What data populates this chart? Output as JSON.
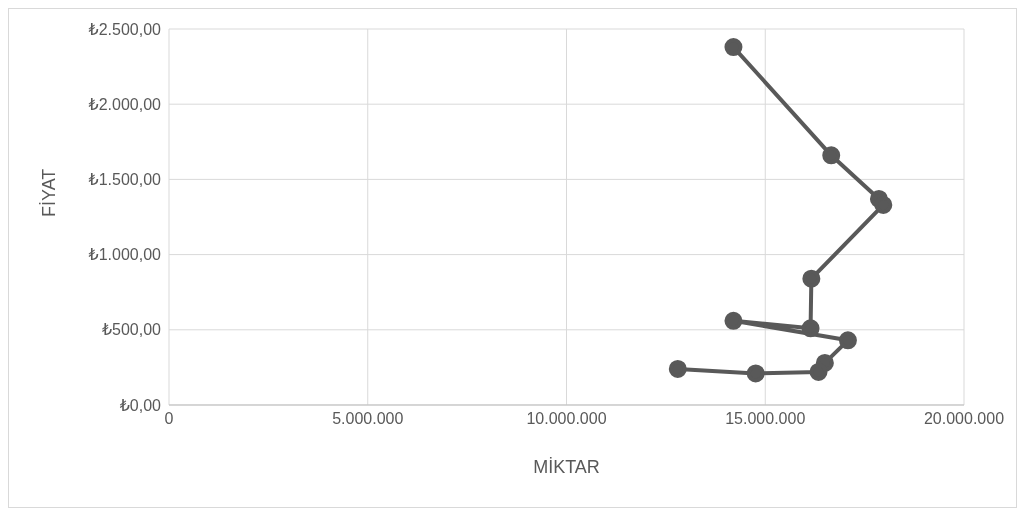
{
  "chart_data": {
    "type": "line",
    "xlabel": "MİKTAR",
    "ylabel": "FİYAT",
    "series": [
      {
        "color": "#595959",
        "x": [
          14200000,
          16660000,
          17860000,
          17970000,
          16160000,
          16140000,
          14200000,
          17080000,
          16500000,
          16340000,
          14760000,
          12800000
        ],
        "values": [
          2380,
          1660,
          1370,
          1330,
          840,
          510,
          560,
          430,
          280,
          220,
          210,
          240
        ]
      }
    ],
    "xlim": [
      0,
      20000000
    ],
    "xticks": [
      0,
      {
        "value": 5000000,
        "label": "5.000.000"
      },
      {
        "value": 10000000,
        "label": "10.000.000"
      },
      {
        "value": 15000000,
        "label": "15.000.000"
      },
      {
        "value": 20000000,
        "label": "20.000.000"
      }
    ],
    "ylim": [
      0,
      2500
    ],
    "yticks": [
      {
        "value": 0,
        "label": "₺0,00"
      },
      {
        "value": 500,
        "label": "₺500,00"
      },
      {
        "value": 1000,
        "label": "₺1.000,00"
      },
      {
        "value": 1500,
        "label": "₺1.500,00"
      },
      {
        "value": 2000,
        "label": "₺2.000,00"
      },
      {
        "value": 2500,
        "label": "₺2.500,00"
      }
    ],
    "grid": true,
    "marker": "circle",
    "line_style": "solid",
    "legend": false
  }
}
